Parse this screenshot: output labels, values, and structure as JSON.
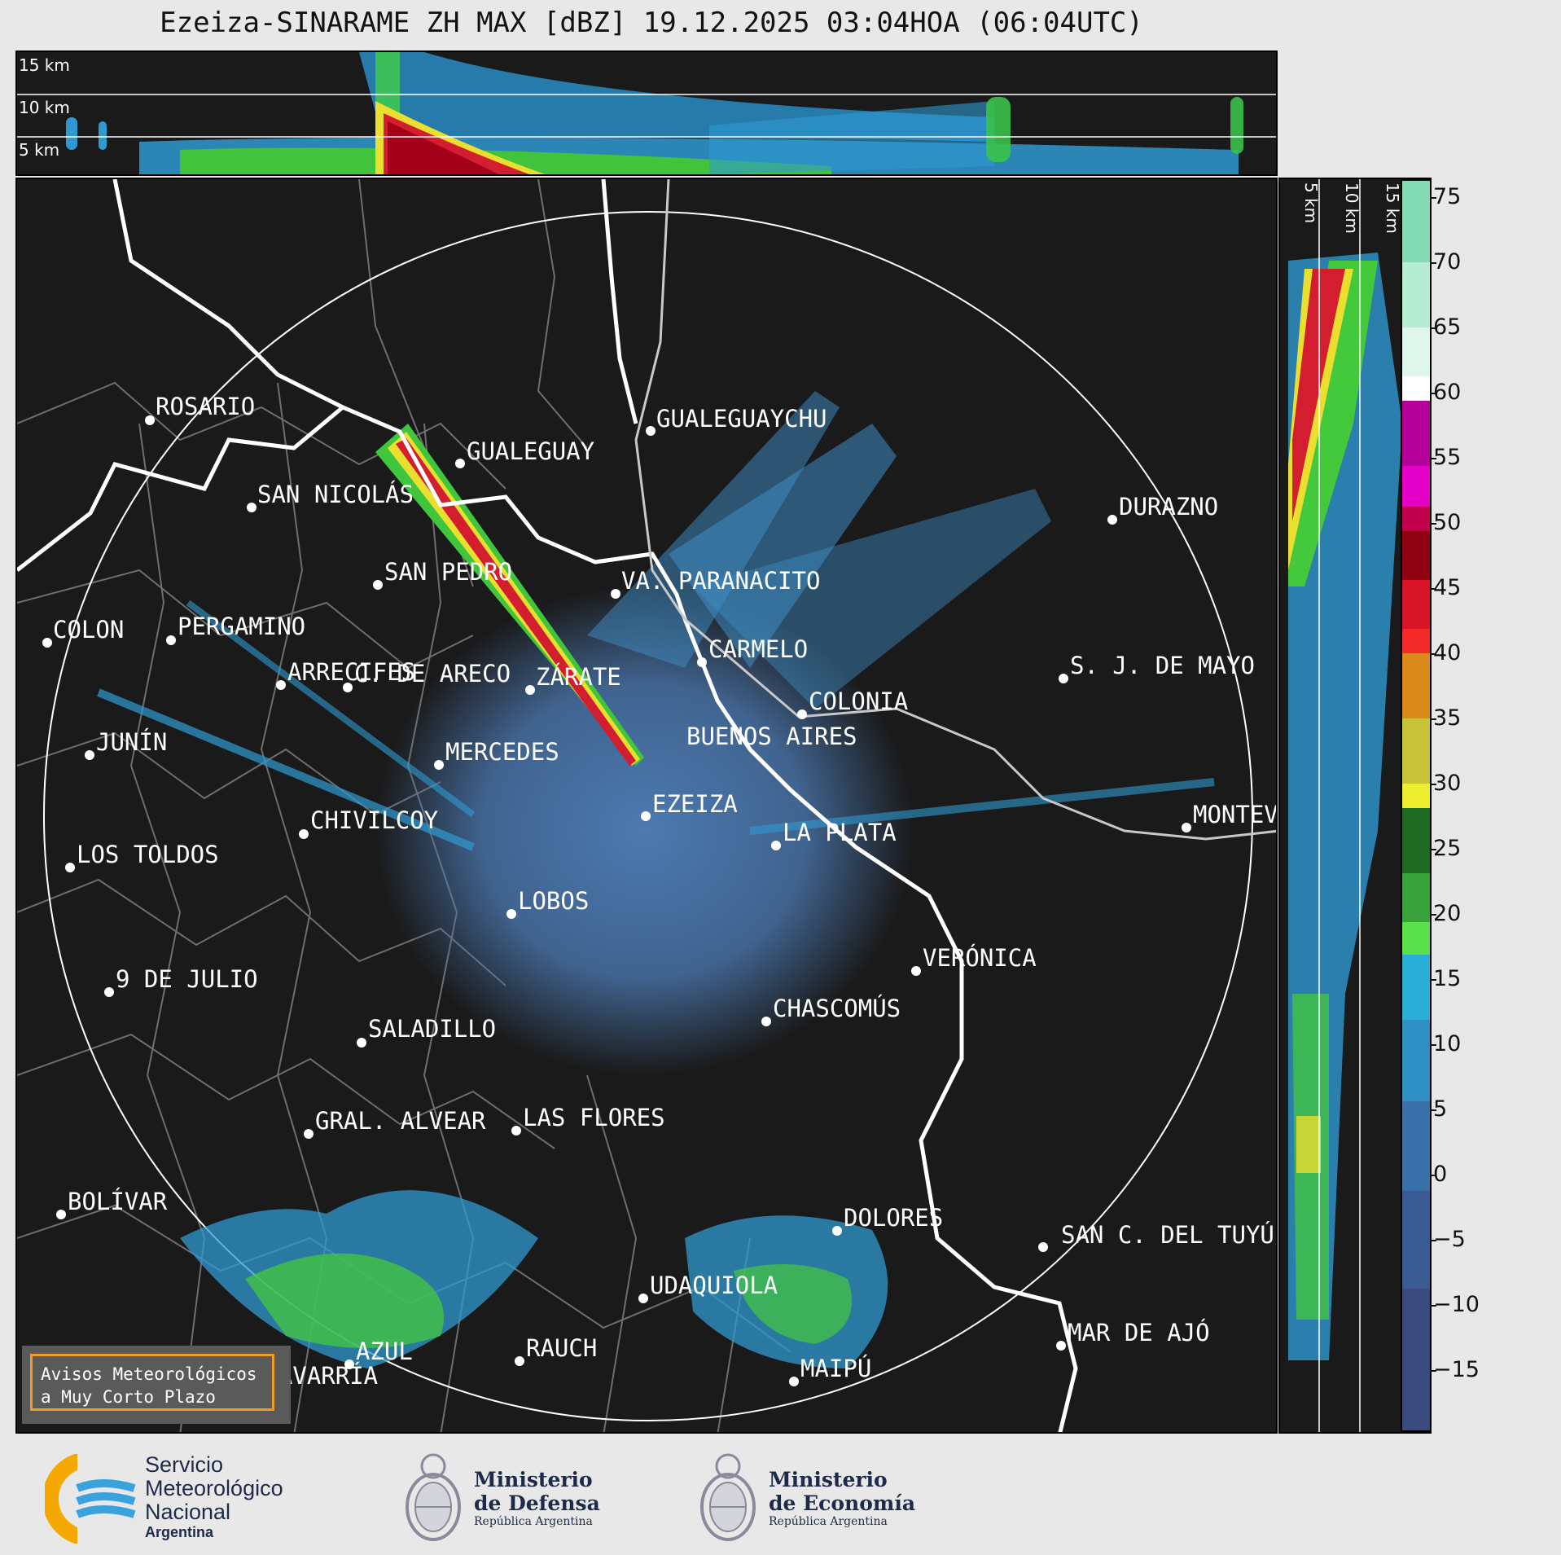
{
  "title": "Ezeiza-SINARAME ZH MAX [dBZ] 19.12.2025 03:04HOA (06:04UTC)",
  "top_panel": {
    "height_labels": [
      "15 km",
      "10 km",
      "5 km"
    ]
  },
  "side_panel": {
    "height_labels": [
      "5 km",
      "10 km",
      "15 km"
    ]
  },
  "colorbar": {
    "ticks": [
      "75",
      "70",
      "65",
      "60",
      "55",
      "50",
      "45",
      "40",
      "35",
      "30",
      "25",
      "20",
      "15",
      "10",
      "5",
      "0",
      "−5",
      "−10",
      "−15"
    ],
    "range": [
      -20,
      76
    ]
  },
  "cities": [
    {
      "name": "ROSARIO"
    },
    {
      "name": "GUALEGUAYCHU"
    },
    {
      "name": "GUALEGUAY"
    },
    {
      "name": "SAN NICOLÁS"
    },
    {
      "name": "DURAZNO"
    },
    {
      "name": "SAN PEDRO"
    },
    {
      "name": "VA. PARANACITO"
    },
    {
      "name": "COLON"
    },
    {
      "name": "PERGAMINO"
    },
    {
      "name": "CARMELO"
    },
    {
      "name": "ARRECIFES"
    },
    {
      "name": "ZÁRATE"
    },
    {
      "name": "S. J. DE MAYO"
    },
    {
      "name": "C. DE ARECO"
    },
    {
      "name": "COLONIA"
    },
    {
      "name": "JUNÍN"
    },
    {
      "name": "BUENOS AIRES"
    },
    {
      "name": "MERCEDES"
    },
    {
      "name": "EZEIZA"
    },
    {
      "name": "MONTEVIDEO"
    },
    {
      "name": "CHIVILCOY"
    },
    {
      "name": "LA PLATA"
    },
    {
      "name": "LOS TOLDOS"
    },
    {
      "name": "LOBOS"
    },
    {
      "name": "VERÓNICA"
    },
    {
      "name": "9 DE JULIO"
    },
    {
      "name": "CHASCOMÚS"
    },
    {
      "name": "SALADILLO"
    },
    {
      "name": "GRAL. ALVEAR"
    },
    {
      "name": "LAS FLORES"
    },
    {
      "name": "BOLÍVAR"
    },
    {
      "name": "DOLORES"
    },
    {
      "name": "SAN C. DEL TUYÚ"
    },
    {
      "name": "UDAQUIOLA"
    },
    {
      "name": "MAR DE AJÓ"
    },
    {
      "name": "AZUL"
    },
    {
      "name": "RAUCH"
    },
    {
      "name": "MAIPÚ"
    },
    {
      "name": "OLAVARRÍA"
    }
  ],
  "warning_box": {
    "line1": "Avisos Meteorológicos",
    "line2": "a Muy Corto Plazo"
  },
  "footer": {
    "smn_line1": "Servicio",
    "smn_line2": "Meteorológico",
    "smn_line3": "Nacional",
    "smn_line4": "Argentina",
    "defensa_line1": "Ministerio",
    "defensa_line2": "de Defensa",
    "defensa_line3": "República Argentina",
    "economia_line1": "Ministerio",
    "economia_line2": "de Economía",
    "economia_line3": "República Argentina"
  },
  "colors": {
    "frame": "#1a1a1a",
    "ring": "#ffffff",
    "warning_border": "#f29c1f"
  }
}
